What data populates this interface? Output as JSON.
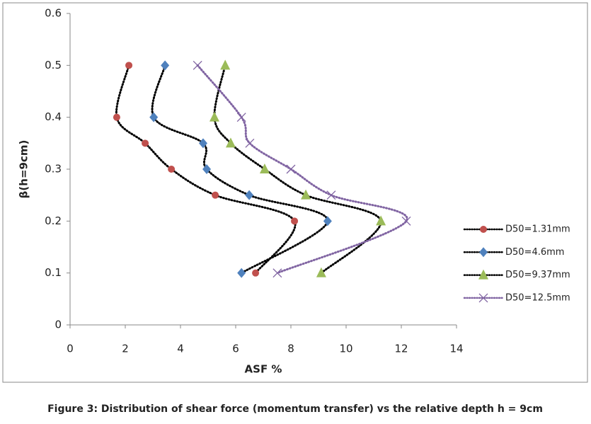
{
  "chart_data": {
    "type": "scatter",
    "x_label": "ASF %",
    "y_label": "β(h=9cm)",
    "xlim": [
      0,
      14
    ],
    "xticks": [
      0,
      2,
      4,
      6,
      8,
      10,
      12,
      14
    ],
    "ylim": [
      0,
      0.6
    ],
    "yticks": [
      0,
      0.1,
      0.2,
      0.3,
      0.4,
      0.5,
      0.6
    ],
    "grid": false,
    "legend": "right",
    "smooth": true,
    "series": [
      {
        "name": "D50=1.31mm",
        "color": "#c0504d",
        "line_color": "#000000",
        "marker": "circle",
        "x": [
          2.13,
          1.69,
          2.72,
          3.67,
          5.26,
          8.13,
          6.72
        ],
        "y": [
          0.5,
          0.4,
          0.35,
          0.3,
          0.25,
          0.2,
          0.1
        ]
      },
      {
        "name": "D50=4.6mm",
        "color": "#4f81bd",
        "line_color": "#000000",
        "marker": "diamond",
        "x": [
          3.44,
          3.03,
          4.82,
          4.95,
          6.49,
          9.33,
          6.21
        ],
        "y": [
          0.5,
          0.4,
          0.35,
          0.3,
          0.25,
          0.2,
          0.1
        ]
      },
      {
        "name": "D50=9.37mm",
        "color": "#9bbb59",
        "line_color": "#000000",
        "marker": "triangle",
        "x": [
          5.62,
          5.23,
          5.82,
          7.05,
          8.54,
          11.26,
          9.1
        ],
        "y": [
          0.5,
          0.4,
          0.35,
          0.3,
          0.25,
          0.2,
          0.1
        ]
      },
      {
        "name": "D50=12.5mm",
        "color": "#8064a2",
        "line_color": "#8064a2",
        "marker": "x",
        "x": [
          4.62,
          6.21,
          6.51,
          8.0,
          9.46,
          12.18,
          7.51
        ],
        "y": [
          0.5,
          0.4,
          0.35,
          0.3,
          0.25,
          0.2,
          0.1
        ]
      }
    ]
  },
  "caption": "Figure 3: Distribution of shear force (momentum transfer) vs the relative depth h = 9cm"
}
